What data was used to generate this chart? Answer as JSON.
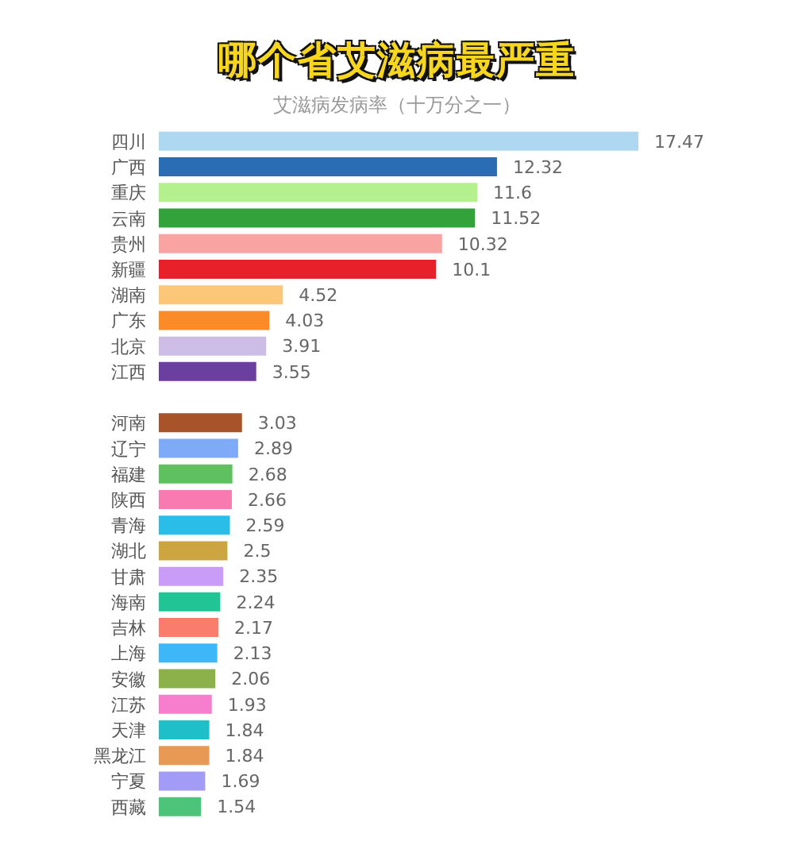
{
  "chart_data": {
    "type": "bar",
    "orientation": "horizontal",
    "title": "哪个省艾滋病最严重",
    "subtitle": "艾滋病发病率（十万分之一）",
    "categories": [
      "四川",
      "广西",
      "重庆",
      "云南",
      "贵州",
      "新疆",
      "湖南",
      "广东",
      "北京",
      "江西",
      null,
      "河南",
      "辽宁",
      "福建",
      "陕西",
      "青海",
      "湖北",
      "甘肃",
      "海南",
      "吉林",
      "上海",
      "安徽",
      "江苏",
      "天津",
      "黑龙江",
      "宁夏",
      "西藏"
    ],
    "values": [
      17.47,
      12.32,
      11.6,
      11.52,
      10.32,
      10.1,
      4.52,
      4.03,
      3.91,
      3.55,
      null,
      3.03,
      2.89,
      2.68,
      2.66,
      2.59,
      2.5,
      2.35,
      2.24,
      2.17,
      2.13,
      2.06,
      1.93,
      1.84,
      1.84,
      1.69,
      1.54
    ],
    "colors": [
      "#aed8f2",
      "#2a6db5",
      "#b5f08e",
      "#32a33a",
      "#f9a3a3",
      "#e8202a",
      "#fdc77a",
      "#fb8a28",
      "#cdbde6",
      "#6b3fa0",
      null,
      "#a9532a",
      "#7faaf7",
      "#5ec05e",
      "#f77bb0",
      "#29bde8",
      "#cca540",
      "#c89cf7",
      "#21c595",
      "#fa7c6c",
      "#3db7f7",
      "#8cb04a",
      "#f77ecc",
      "#1fbfc8",
      "#e89a55",
      "#a29cf7",
      "#4cc47a"
    ],
    "tick_labels": "y",
    "data_labels": true
  }
}
